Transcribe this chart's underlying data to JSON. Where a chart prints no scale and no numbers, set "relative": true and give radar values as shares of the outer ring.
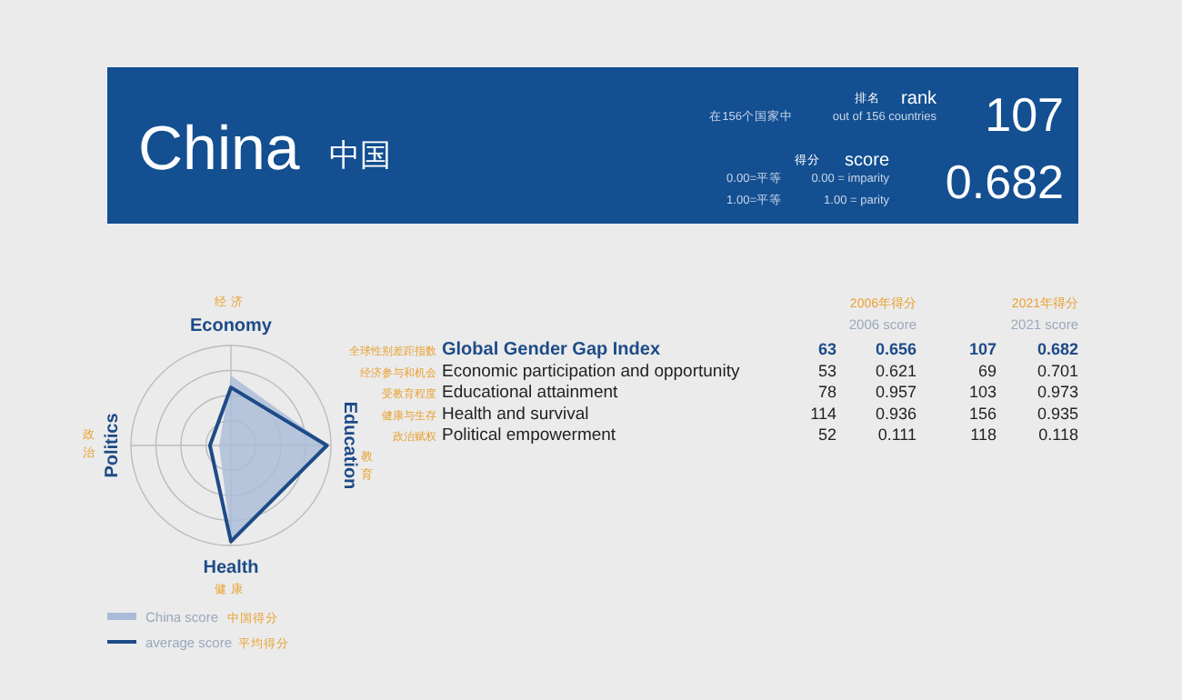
{
  "chart_data": [
    {
      "type": "other",
      "title": "China",
      "subtitle": "中国",
      "annotations": [
        "排名",
        "rank",
        "在156个国家中",
        "out of 156 countries",
        "107",
        "得分",
        "score",
        "0.00=平等",
        "0.00 = imparity",
        "1.00=平等",
        "1.00 = parity",
        "0.682"
      ]
    },
    {
      "type": "radar",
      "categories": [
        "Economy",
        "Education",
        "Health",
        "Politics"
      ],
      "relative": true,
      "legend": "bottom left",
      "series": [
        {
          "name": "China score",
          "color": "#a9bbd8",
          "values": [
            0.701,
            0.973,
            0.935,
            0.118
          ]
        },
        {
          "name": "average score",
          "color": "#1d4b87",
          "values": [
            0.58,
            0.96,
            0.96,
            0.21
          ]
        }
      ],
      "annotations": [
        "经济",
        "教育",
        "健康",
        "政治",
        "中国得分",
        "平均得分"
      ]
    },
    {
      "type": "other",
      "annotations": [
        "2006年得分",
        "2006 score",
        "2021年得分",
        "2021 score",
        "全球性别差距指数",
        "Global Gender Gap Index",
        "63",
        "0.656",
        "107",
        "0.682",
        "经济参与和机会",
        "Economic participation and opportunity",
        "53",
        "0.621",
        "69",
        "0.701",
        "受教育程度",
        "Educational attainment",
        "78",
        "0.957",
        "103",
        "0.973",
        "健康与生存",
        "Health and survival",
        "114",
        "0.936",
        "156",
        "0.935",
        "政治赋权",
        "Political empowerment",
        "52",
        "0.111",
        "118",
        "0.118"
      ]
    }
  ]
}
